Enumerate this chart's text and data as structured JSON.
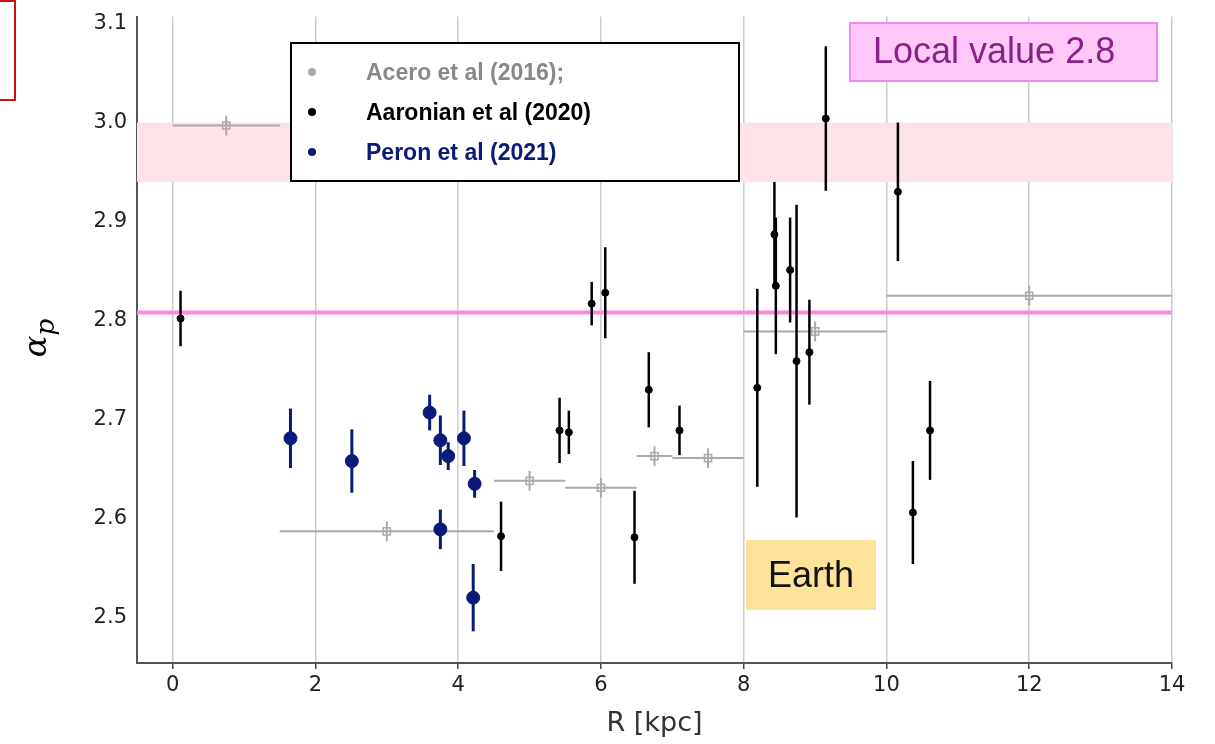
{
  "chart_data": {
    "type": "scatter",
    "xlabel": "R [kpc]",
    "ylabel": "α$_{p}$",
    "xlim": [
      -0.5,
      14
    ],
    "xticks": [
      0,
      2,
      4,
      6,
      8,
      10,
      12,
      14
    ],
    "ylim": [
      2.454,
      3.107
    ],
    "yticks": [
      2.5,
      2.6,
      2.7,
      2.8,
      2.9,
      {
        "value": 3,
        "label": "3.0"
      },
      3.1
    ],
    "grid": "x",
    "legend": "top left",
    "series": [
      {
        "name": "Acero et al (2016);",
        "color": "#aaaaaa",
        "marker": "square",
        "x": [
          0.75,
          3.0,
          5.0,
          6.0,
          6.75,
          7.5,
          9.0,
          12.0
        ],
        "values": [
          2.997,
          2.587,
          2.638,
          2.631,
          2.663,
          2.661,
          2.789,
          2.825
        ],
        "errors": [
          0.01,
          0.01,
          0.01,
          0.01,
          0.01,
          0.01,
          0.01,
          0.01
        ],
        "xerrors": [
          [
            0,
            1.5
          ],
          [
            1.5,
            4.5
          ],
          [
            4.5,
            5.5
          ],
          [
            5.5,
            6.5
          ],
          [
            6.5,
            7.0
          ],
          [
            7.0,
            8.0
          ],
          [
            8.0,
            10.0
          ],
          [
            10.0,
            14.0
          ]
        ]
      },
      {
        "name": "Aaronian et al (2020)",
        "color": "#000000",
        "marker": "circle",
        "x": [
          0.11,
          4.6,
          5.42,
          5.55,
          5.87,
          6.06,
          6.47,
          6.67,
          7.1,
          8.19,
          8.43,
          8.45,
          8.65,
          8.74,
          8.92,
          9.15,
          10.16,
          10.37,
          10.61
        ],
        "values": [
          2.802,
          2.582,
          2.689,
          2.687,
          2.817,
          2.828,
          2.581,
          2.73,
          2.689,
          2.732,
          2.887,
          2.835,
          2.851,
          2.759,
          2.768,
          3.004,
          2.93,
          2.606,
          2.689
        ],
        "errors": [
          0.028,
          0.035,
          0.033,
          0.022,
          0.022,
          0.046,
          0.047,
          0.038,
          0.025,
          0.1,
          0.053,
          0.069,
          0.053,
          0.158,
          0.053,
          0.073,
          0.07,
          0.052,
          0.05
        ]
      },
      {
        "name": "Peron et al (2021)",
        "color": "#0a1a78",
        "marker": "circle",
        "x": [
          1.65,
          2.51,
          3.6,
          3.75,
          3.86,
          4.08,
          4.23,
          3.75,
          4.21
        ],
        "values": [
          2.681,
          2.658,
          2.707,
          2.679,
          2.663,
          2.681,
          2.635,
          2.589,
          2.52
        ],
        "errors": [
          0.03,
          0.032,
          0.018,
          0.025,
          0.014,
          0.028,
          0.014,
          0.02,
          0.034
        ]
      }
    ],
    "ref_lines": [
      {
        "axis": "y",
        "value": 2.808,
        "color": "#ff88dd"
      }
    ],
    "bands": [
      {
        "axis": "y",
        "from": 2.94,
        "to": 3.0,
        "color": "#fbe3e8"
      }
    ],
    "annotations": [
      "Local value 2.8",
      "Earth"
    ]
  }
}
